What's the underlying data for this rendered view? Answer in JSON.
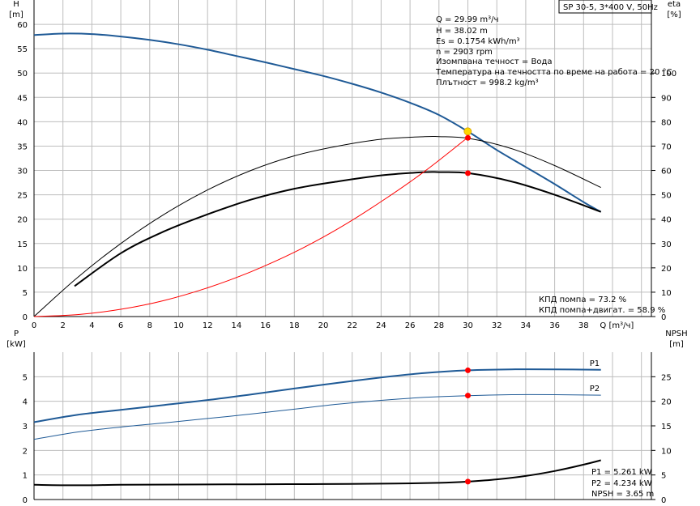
{
  "model_label": "SP 30-5, 3*400 V, 50Hz",
  "info_lines": [
    "Q = 29.99 m³/ч",
    "H = 38.02 m",
    "Es = 0.1754 kWh/m³",
    "n = 2903 rpm",
    "Изомпвана течност = Вода",
    "Температура на течността по време на работа = 20 °C",
    "Плътност = 998.2 kg/m³"
  ],
  "efficiency_text": [
    "КПД помпа = 73.2 %",
    "КПД помпа+двигат. = 58.9 %"
  ],
  "power_text": [
    "P1 = 5.261 kW",
    "P2 = 4.234 kW",
    "NPSH = 3.65 m"
  ],
  "colors": {
    "blue": "#1f5a96",
    "red": "#ff0000",
    "black": "#000000",
    "duty": "#ffd700",
    "grid": "#bdbdbd"
  },
  "chart_data": [
    {
      "type": "line",
      "name_pos": "top",
      "x_label": "Q [m³/ч]",
      "y_left": {
        "label_top": "H",
        "label_unit": "[m]",
        "range": [
          0,
          65
        ],
        "ticks": [
          0,
          5,
          10,
          15,
          20,
          25,
          30,
          35,
          40,
          45,
          50,
          55,
          60
        ]
      },
      "y_right": {
        "label_top": "eta",
        "label_unit": "[%]",
        "range": [
          0,
          130
        ],
        "ticks": [
          0,
          10,
          20,
          30,
          40,
          50,
          60,
          70,
          80,
          90,
          100
        ]
      },
      "x_range": [
        0,
        42
      ],
      "x_ticks": [
        0,
        2,
        4,
        6,
        8,
        10,
        12,
        14,
        16,
        18,
        20,
        22,
        24,
        26,
        28,
        30,
        32,
        34,
        36,
        38
      ],
      "series": [
        {
          "key": "H",
          "axis": "left",
          "color": "blue",
          "width": 2,
          "x": [
            0,
            2,
            4,
            6,
            8,
            10,
            12,
            14,
            16,
            18,
            20,
            22,
            24,
            26,
            28,
            30,
            32,
            34,
            36,
            38,
            39.2
          ],
          "y": [
            57.8,
            58.1,
            58.0,
            57.5,
            56.8,
            55.9,
            54.8,
            53.5,
            52.2,
            50.8,
            49.4,
            47.8,
            46.0,
            43.9,
            41.4,
            38.0,
            34.2,
            30.7,
            27.2,
            23.5,
            21.5
          ]
        },
        {
          "key": "eta_pump",
          "axis": "right",
          "color": "black",
          "width": 1,
          "x": [
            0,
            3,
            6,
            9,
            12,
            15,
            18,
            21,
            24,
            27,
            28,
            30,
            33,
            36,
            39.2
          ],
          "y": [
            0,
            16,
            30,
            42,
            52,
            60,
            66,
            70,
            72.8,
            73.9,
            73.9,
            73.2,
            69.0,
            62.0,
            53.0
          ]
        },
        {
          "key": "eta_total",
          "axis": "right",
          "color": "black",
          "width": 2,
          "x": [
            2.8,
            6,
            9,
            12,
            15,
            18,
            21,
            24,
            27,
            28,
            30,
            33,
            36,
            39.2
          ],
          "y": [
            12.5,
            26,
            35,
            42,
            48,
            52.5,
            55.5,
            58,
            59.3,
            59.3,
            58.9,
            55.5,
            50.0,
            43.0
          ]
        },
        {
          "key": "system",
          "axis": "left",
          "color": "red",
          "width": 1,
          "x": [
            0,
            3,
            6,
            9,
            12,
            15,
            18,
            21,
            24,
            27,
            30
          ],
          "y": [
            0,
            0.4,
            1.5,
            3.3,
            5.9,
            9.2,
            13.2,
            18.0,
            23.6,
            29.8,
            36.8
          ]
        }
      ],
      "markers": [
        {
          "x": 29.99,
          "y": 38.02,
          "axis": "left",
          "color": "duty"
        },
        {
          "x": 30,
          "y": 36.7,
          "axis": "left",
          "color": "red"
        },
        {
          "x": 30,
          "y": 58.9,
          "axis": "right",
          "color": "red"
        }
      ]
    },
    {
      "type": "line",
      "name_pos": "bottom",
      "y_left": {
        "label_top": "P",
        "label_unit": "[kW]",
        "range": [
          0,
          6
        ],
        "ticks": [
          0,
          1,
          2,
          3,
          4,
          5
        ]
      },
      "y_right": {
        "label_top": "NPSH",
        "label_unit": "[m]",
        "range": [
          0,
          30
        ],
        "ticks": [
          0,
          5,
          10,
          15,
          20,
          25
        ]
      },
      "x_range": [
        0,
        42
      ],
      "series": [
        {
          "key": "P1",
          "name": "P1",
          "axis": "left",
          "color": "blue",
          "width": 2,
          "x": [
            0,
            3,
            6,
            9,
            12,
            15,
            18,
            21,
            24,
            27,
            30,
            33,
            36,
            39.2
          ],
          "y": [
            3.15,
            3.45,
            3.65,
            3.85,
            4.05,
            4.28,
            4.52,
            4.75,
            4.97,
            5.15,
            5.26,
            5.3,
            5.3,
            5.28
          ]
        },
        {
          "key": "P2",
          "name": "P2",
          "axis": "left",
          "color": "blue",
          "width": 1,
          "x": [
            0,
            3,
            6,
            9,
            12,
            15,
            18,
            21,
            24,
            27,
            30,
            33,
            36,
            39.2
          ],
          "y": [
            2.45,
            2.75,
            2.95,
            3.12,
            3.3,
            3.48,
            3.68,
            3.88,
            4.04,
            4.16,
            4.23,
            4.27,
            4.27,
            4.25
          ]
        },
        {
          "key": "NPSH",
          "axis": "right",
          "color": "black",
          "width": 2,
          "x": [
            0,
            2.8,
            6,
            10,
            15,
            20,
            25,
            28,
            30,
            32,
            34,
            36,
            38,
            39.2
          ],
          "y": [
            3.0,
            2.9,
            3.0,
            3.05,
            3.1,
            3.15,
            3.25,
            3.4,
            3.65,
            4.1,
            4.8,
            5.8,
            7.1,
            8.0
          ]
        }
      ],
      "markers": [
        {
          "x": 30,
          "y": 5.261,
          "axis": "left",
          "color": "red"
        },
        {
          "x": 30,
          "y": 4.234,
          "axis": "left",
          "color": "red"
        },
        {
          "x": 30,
          "y": 3.65,
          "axis": "right",
          "color": "red"
        }
      ]
    }
  ]
}
